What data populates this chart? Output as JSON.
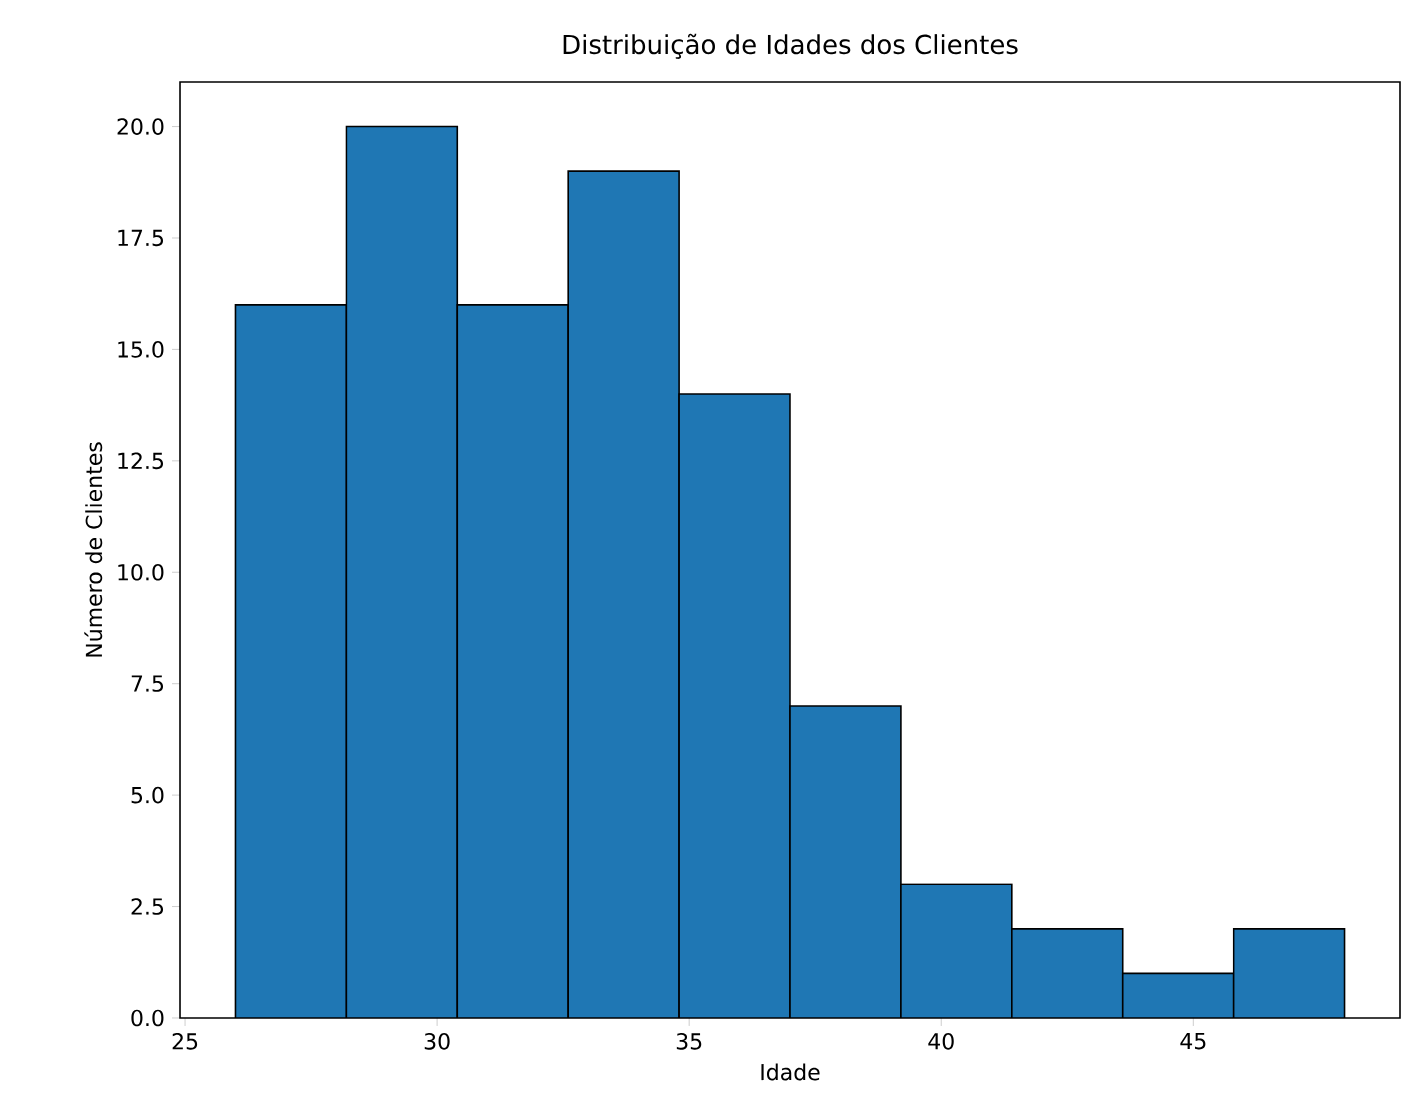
{
  "chart_data": {
    "type": "histogram",
    "title": "Distribuição de Idades dos Clientes",
    "xlabel": "Idade",
    "ylabel": "Número de Clientes",
    "bins": [
      26,
      28.2,
      30.4,
      32.6,
      34.8,
      37,
      39.2,
      41.4,
      43.6,
      45.8,
      48
    ],
    "values": [
      16,
      20,
      16,
      19,
      14,
      7,
      3,
      2,
      1,
      2
    ],
    "color": "#1f77b4",
    "xlim": [
      24.9,
      49.1
    ],
    "ylim": [
      0,
      21
    ],
    "xticks": [
      25,
      30,
      35,
      40,
      45
    ],
    "yticks": [
      {
        "value": 0,
        "label": "0.0"
      },
      {
        "value": 2.5,
        "label": "2.5"
      },
      {
        "value": 5,
        "label": "5.0"
      },
      {
        "value": 7.5,
        "label": "7.5"
      },
      {
        "value": 10,
        "label": "10.0"
      },
      {
        "value": 12.5,
        "label": "12.5"
      },
      {
        "value": 15,
        "label": "15.0"
      },
      {
        "value": 17.5,
        "label": "17.5"
      },
      {
        "value": 20,
        "label": "20.0"
      }
    ],
    "grid": false
  }
}
